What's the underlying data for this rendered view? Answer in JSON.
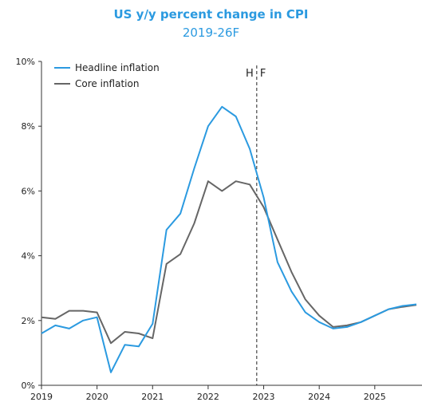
{
  "chart_data": {
    "type": "line",
    "title": "US y/y percent change in CPI",
    "subtitle": "2019-26F",
    "xlabel": "",
    "ylabel": "",
    "ylim": [
      0,
      10
    ],
    "y_ticks": [
      "0%",
      "2%",
      "4%",
      "6%",
      "8%",
      "10%"
    ],
    "x_ticks": [
      "2019",
      "2020",
      "2021",
      "2022",
      "2023",
      "2024",
      "2025"
    ],
    "x_range": [
      2019.0,
      2025.85
    ],
    "grid": false,
    "legend_position": "top-left",
    "forecast_divider": {
      "x": 2022.875,
      "label_left": "H",
      "label_right": "F"
    },
    "x": [
      2019.0,
      2019.25,
      2019.5,
      2019.75,
      2020.0,
      2020.25,
      2020.5,
      2020.75,
      2021.0,
      2021.25,
      2021.5,
      2021.75,
      2022.0,
      2022.25,
      2022.5,
      2022.75,
      2023.0,
      2023.25,
      2023.5,
      2023.75,
      2024.0,
      2024.25,
      2024.5,
      2024.75,
      2025.0,
      2025.25,
      2025.5,
      2025.75
    ],
    "series": [
      {
        "name": "Headline inflation",
        "color": "#2b9ae0",
        "values": [
          1.6,
          1.85,
          1.75,
          2.0,
          2.1,
          0.4,
          1.25,
          1.2,
          1.9,
          4.8,
          5.3,
          6.7,
          8.0,
          8.6,
          8.3,
          7.3,
          5.8,
          3.8,
          2.9,
          2.25,
          1.95,
          1.75,
          1.8,
          1.95,
          2.15,
          2.35,
          2.45,
          2.5
        ]
      },
      {
        "name": "Core inflation",
        "color": "#666666",
        "values": [
          2.1,
          2.05,
          2.3,
          2.3,
          2.25,
          1.3,
          1.65,
          1.6,
          1.45,
          3.75,
          4.05,
          5.0,
          6.3,
          6.0,
          6.3,
          6.2,
          5.5,
          4.5,
          3.5,
          2.65,
          2.15,
          1.8,
          1.85,
          1.95,
          2.15,
          2.35,
          2.42,
          2.48
        ]
      }
    ]
  }
}
